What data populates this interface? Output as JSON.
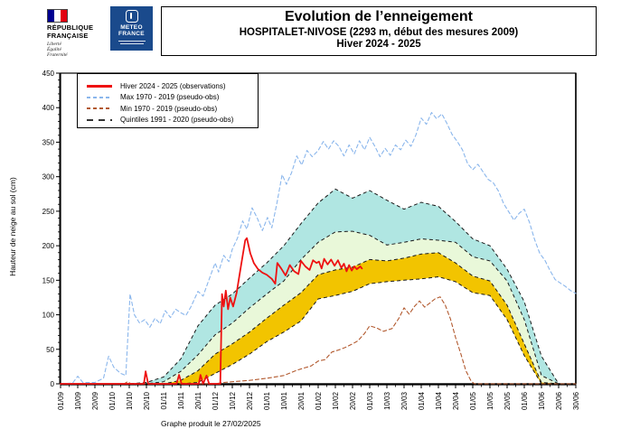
{
  "header": {
    "rf_logo": {
      "name_line1": "RÉPUBLIQUE",
      "name_line2": "FRANÇAISE",
      "motto_line1": "Liberté",
      "motto_line2": "Égalité",
      "motto_line3": "Fraternité"
    },
    "mf_logo": {
      "name_line1": "METEO",
      "name_line2": "FRANCE"
    },
    "title": "Evolution de l’enneigement",
    "subtitle": "HOSPITALET-NIVOSE (2293 m, début des mesures 2009)",
    "season": "Hiver 2024 - 2025"
  },
  "legend": {
    "items": [
      {
        "label": "Hiver 2024 - 2025 (observations)",
        "style": "solid",
        "color": "#ee1111"
      },
      {
        "label": "Max 1970 - 2019 (pseudo-obs)",
        "style": "dashed",
        "color": "#8ab6ec"
      },
      {
        "label": "Min 1970 - 2019 (pseudo-obs)",
        "style": "dashed",
        "color": "#b2592e"
      },
      {
        "label": "Quintiles 1991 - 2020 (pseudo-obs)",
        "style": "dashed-long",
        "color": "#333333"
      }
    ]
  },
  "caption": "Graphe produit le 27/02/2025",
  "chart_data": {
    "type": "line",
    "title": "Evolution de l’enneigement - HOSPITALET-NIVOSE - Hiver 2024 - 2025",
    "xlabel": "",
    "ylabel": "Hauteur de neige au sol (cm)",
    "ylim": [
      0,
      450
    ],
    "y_ticks": [
      0,
      50,
      100,
      150,
      200,
      250,
      300,
      350,
      400,
      450
    ],
    "y_minor_step": 10,
    "grid": false,
    "legend_position": "upper-left",
    "x_tick_labels": [
      "01/09",
      "10/09",
      "20/09",
      "01/10",
      "10/10",
      "20/10",
      "01/11",
      "10/11",
      "20/11",
      "01/12",
      "10/12",
      "20/12",
      "01/01",
      "10/01",
      "20/01",
      "01/02",
      "10/02",
      "20/02",
      "01/03",
      "10/03",
      "20/03",
      "01/04",
      "10/04",
      "20/04",
      "01/05",
      "10/05",
      "20/05",
      "01/06",
      "10/06",
      "20/06",
      "30/06"
    ],
    "colors": {
      "band_q60_q80": "#b0e6e2",
      "band_q40_q60": "#e9f8d9",
      "band_q20_q40": "#f2c400",
      "quintile_line": "#1a1a1a",
      "max_line": "#8ab6ec",
      "min_line": "#b2592e",
      "obs_line": "#ee1111",
      "frame": "#000000"
    },
    "quintiles_1991_2020": {
      "q20": [
        0,
        0,
        0,
        0,
        0,
        0,
        0,
        0,
        2,
        15,
        28,
        43,
        61,
        75,
        91,
        123,
        128,
        134,
        145,
        148,
        150,
        152,
        155,
        148,
        132,
        128,
        93,
        41,
        0,
        0,
        0
      ],
      "q40": [
        0,
        0,
        0,
        0,
        0,
        0,
        0,
        5,
        19,
        43,
        58,
        75,
        95,
        114,
        132,
        158,
        165,
        169,
        180,
        178,
        182,
        188,
        190,
        175,
        156,
        149,
        114,
        58,
        2,
        0,
        0
      ],
      "q60": [
        0,
        0,
        0,
        0,
        0,
        0,
        3,
        18,
        42,
        71,
        88,
        110,
        130,
        149,
        180,
        205,
        220,
        221,
        215,
        201,
        205,
        210,
        208,
        205,
        184,
        178,
        149,
        93,
        12,
        0,
        0
      ],
      "q80": [
        0,
        0,
        0,
        0,
        0,
        2,
        10,
        36,
        84,
        114,
        130,
        153,
        175,
        200,
        232,
        262,
        282,
        269,
        280,
        266,
        253,
        263,
        257,
        235,
        210,
        200,
        166,
        119,
        40,
        0,
        0
      ]
    },
    "bands": [
      {
        "upper": "q80",
        "lower": "q60",
        "color_key": "band_q60_q80"
      },
      {
        "upper": "q60",
        "lower": "q40",
        "color_key": "band_q40_q60"
      },
      {
        "upper": "q40",
        "lower": "q20",
        "color_key": "band_q20_q40"
      }
    ],
    "series": [
      {
        "name": "Max 1970 - 2019 (pseudo-obs)",
        "color_key": "max_line",
        "dash": "4 3",
        "width": 1.1,
        "points": [
          [
            0,
            0
          ],
          [
            0.7,
            1
          ],
          [
            1,
            11
          ],
          [
            1.3,
            2
          ],
          [
            2,
            2
          ],
          [
            2.5,
            8
          ],
          [
            2.8,
            40
          ],
          [
            3.1,
            24
          ],
          [
            3.5,
            15
          ],
          [
            3.8,
            12
          ],
          [
            4.05,
            130
          ],
          [
            4.3,
            100
          ],
          [
            4.6,
            88
          ],
          [
            4.9,
            93
          ],
          [
            5.2,
            82
          ],
          [
            5.5,
            95
          ],
          [
            5.8,
            87
          ],
          [
            6.1,
            106
          ],
          [
            6.4,
            96
          ],
          [
            6.7,
            108
          ],
          [
            7,
            103
          ],
          [
            7.3,
            99
          ],
          [
            7.6,
            112
          ],
          [
            8,
            134
          ],
          [
            8.3,
            127
          ],
          [
            8.6,
            148
          ],
          [
            9,
            175
          ],
          [
            9.2,
            162
          ],
          [
            9.5,
            186
          ],
          [
            9.8,
            177
          ],
          [
            10,
            195
          ],
          [
            10.3,
            211
          ],
          [
            10.6,
            236
          ],
          [
            10.85,
            224
          ],
          [
            11.15,
            255
          ],
          [
            11.45,
            240
          ],
          [
            11.75,
            222
          ],
          [
            12.05,
            241
          ],
          [
            12.3,
            226
          ],
          [
            12.6,
            262
          ],
          [
            12.9,
            303
          ],
          [
            13.15,
            289
          ],
          [
            13.45,
            306
          ],
          [
            13.75,
            330
          ],
          [
            14.05,
            317
          ],
          [
            14.35,
            338
          ],
          [
            14.65,
            329
          ],
          [
            15,
            338
          ],
          [
            15.3,
            351
          ],
          [
            15.6,
            340
          ],
          [
            15.9,
            352
          ],
          [
            16.2,
            344
          ],
          [
            16.5,
            330
          ],
          [
            16.8,
            346
          ],
          [
            17.1,
            333
          ],
          [
            17.4,
            352
          ],
          [
            17.7,
            339
          ],
          [
            18,
            357
          ],
          [
            18.3,
            344
          ],
          [
            18.6,
            329
          ],
          [
            18.9,
            341
          ],
          [
            19.2,
            331
          ],
          [
            19.5,
            346
          ],
          [
            19.8,
            339
          ],
          [
            20.1,
            353
          ],
          [
            20.4,
            344
          ],
          [
            20.7,
            361
          ],
          [
            21,
            385
          ],
          [
            21.3,
            376
          ],
          [
            21.6,
            393
          ],
          [
            21.9,
            384
          ],
          [
            22.2,
            391
          ],
          [
            22.5,
            377
          ],
          [
            22.8,
            361
          ],
          [
            23.1,
            351
          ],
          [
            23.4,
            339
          ],
          [
            23.7,
            319
          ],
          [
            24,
            310
          ],
          [
            24.3,
            318
          ],
          [
            24.6,
            307
          ],
          [
            24.9,
            296
          ],
          [
            25.2,
            291
          ],
          [
            25.5,
            279
          ],
          [
            25.8,
            261
          ],
          [
            26.1,
            249
          ],
          [
            26.4,
            237
          ],
          [
            26.7,
            247
          ],
          [
            27,
            253
          ],
          [
            27.3,
            234
          ],
          [
            27.6,
            209
          ],
          [
            27.9,
            189
          ],
          [
            28.2,
            179
          ],
          [
            28.5,
            164
          ],
          [
            28.8,
            151
          ],
          [
            29.1,
            146
          ],
          [
            29.4,
            141
          ],
          [
            29.7,
            135
          ],
          [
            30,
            131
          ]
        ]
      },
      {
        "name": "Min 1970 - 2019 (pseudo-obs)",
        "color_key": "min_line",
        "dash": "4 3",
        "width": 1.1,
        "points": [
          [
            0,
            0
          ],
          [
            3.7,
            0
          ],
          [
            3.9,
            3
          ],
          [
            4.1,
            0
          ],
          [
            9,
            0
          ],
          [
            9.5,
            2
          ],
          [
            10,
            3
          ],
          [
            11,
            5
          ],
          [
            12,
            8
          ],
          [
            13,
            12
          ],
          [
            13.8,
            20
          ],
          [
            14.2,
            23
          ],
          [
            14.6,
            26
          ],
          [
            15,
            33
          ],
          [
            15.4,
            35
          ],
          [
            15.8,
            46
          ],
          [
            16.2,
            49
          ],
          [
            16.6,
            53
          ],
          [
            17,
            58
          ],
          [
            17.3,
            62
          ],
          [
            17.7,
            73
          ],
          [
            18,
            84
          ],
          [
            18.4,
            81
          ],
          [
            18.8,
            76
          ],
          [
            19.3,
            80
          ],
          [
            19.7,
            95
          ],
          [
            20,
            110
          ],
          [
            20.3,
            101
          ],
          [
            20.6,
            112
          ],
          [
            20.9,
            120
          ],
          [
            21.2,
            111
          ],
          [
            21.5,
            117
          ],
          [
            21.8,
            123
          ],
          [
            22.1,
            126
          ],
          [
            22.4,
            114
          ],
          [
            22.7,
            94
          ],
          [
            23,
            67
          ],
          [
            23.3,
            44
          ],
          [
            23.6,
            19
          ],
          [
            23.9,
            4
          ],
          [
            24.1,
            0
          ],
          [
            30,
            0
          ]
        ]
      },
      {
        "name": "Hiver 2024 - 2025 (observations)",
        "color_key": "obs_line",
        "dash": "",
        "width": 1.8,
        "points": [
          [
            0,
            0
          ],
          [
            4.85,
            0
          ],
          [
            4.95,
            18
          ],
          [
            5.1,
            0
          ],
          [
            6.75,
            0
          ],
          [
            6.9,
            13
          ],
          [
            7.05,
            0
          ],
          [
            8.05,
            0
          ],
          [
            8.15,
            13
          ],
          [
            8.3,
            0
          ],
          [
            8.5,
            12
          ],
          [
            8.65,
            0
          ],
          [
            9.3,
            0
          ],
          [
            9.4,
            130
          ],
          [
            9.5,
            112
          ],
          [
            9.62,
            135
          ],
          [
            9.75,
            108
          ],
          [
            9.88,
            125
          ],
          [
            10.05,
            112
          ],
          [
            10.25,
            132
          ],
          [
            10.5,
            170
          ],
          [
            10.75,
            208
          ],
          [
            10.85,
            211
          ],
          [
            11.05,
            189
          ],
          [
            11.25,
            175
          ],
          [
            11.5,
            166
          ],
          [
            11.75,
            161
          ],
          [
            12,
            158
          ],
          [
            12.3,
            152
          ],
          [
            12.5,
            145
          ],
          [
            12.62,
            175
          ],
          [
            12.85,
            167
          ],
          [
            13.1,
            157
          ],
          [
            13.35,
            172
          ],
          [
            13.6,
            163
          ],
          [
            13.85,
            159
          ],
          [
            14,
            178
          ],
          [
            14.25,
            170
          ],
          [
            14.5,
            165
          ],
          [
            14.7,
            179
          ],
          [
            14.9,
            175
          ],
          [
            15.05,
            177
          ],
          [
            15.2,
            167
          ],
          [
            15.35,
            181
          ],
          [
            15.55,
            173
          ],
          [
            15.75,
            180
          ],
          [
            15.95,
            171
          ],
          [
            16.15,
            179
          ],
          [
            16.35,
            168
          ],
          [
            16.5,
            174
          ],
          [
            16.65,
            163
          ],
          [
            16.8,
            172
          ],
          [
            16.95,
            164
          ],
          [
            17.1,
            170
          ],
          [
            17.25,
            166
          ],
          [
            17.45,
            170
          ],
          [
            17.55,
            167
          ]
        ]
      }
    ]
  }
}
